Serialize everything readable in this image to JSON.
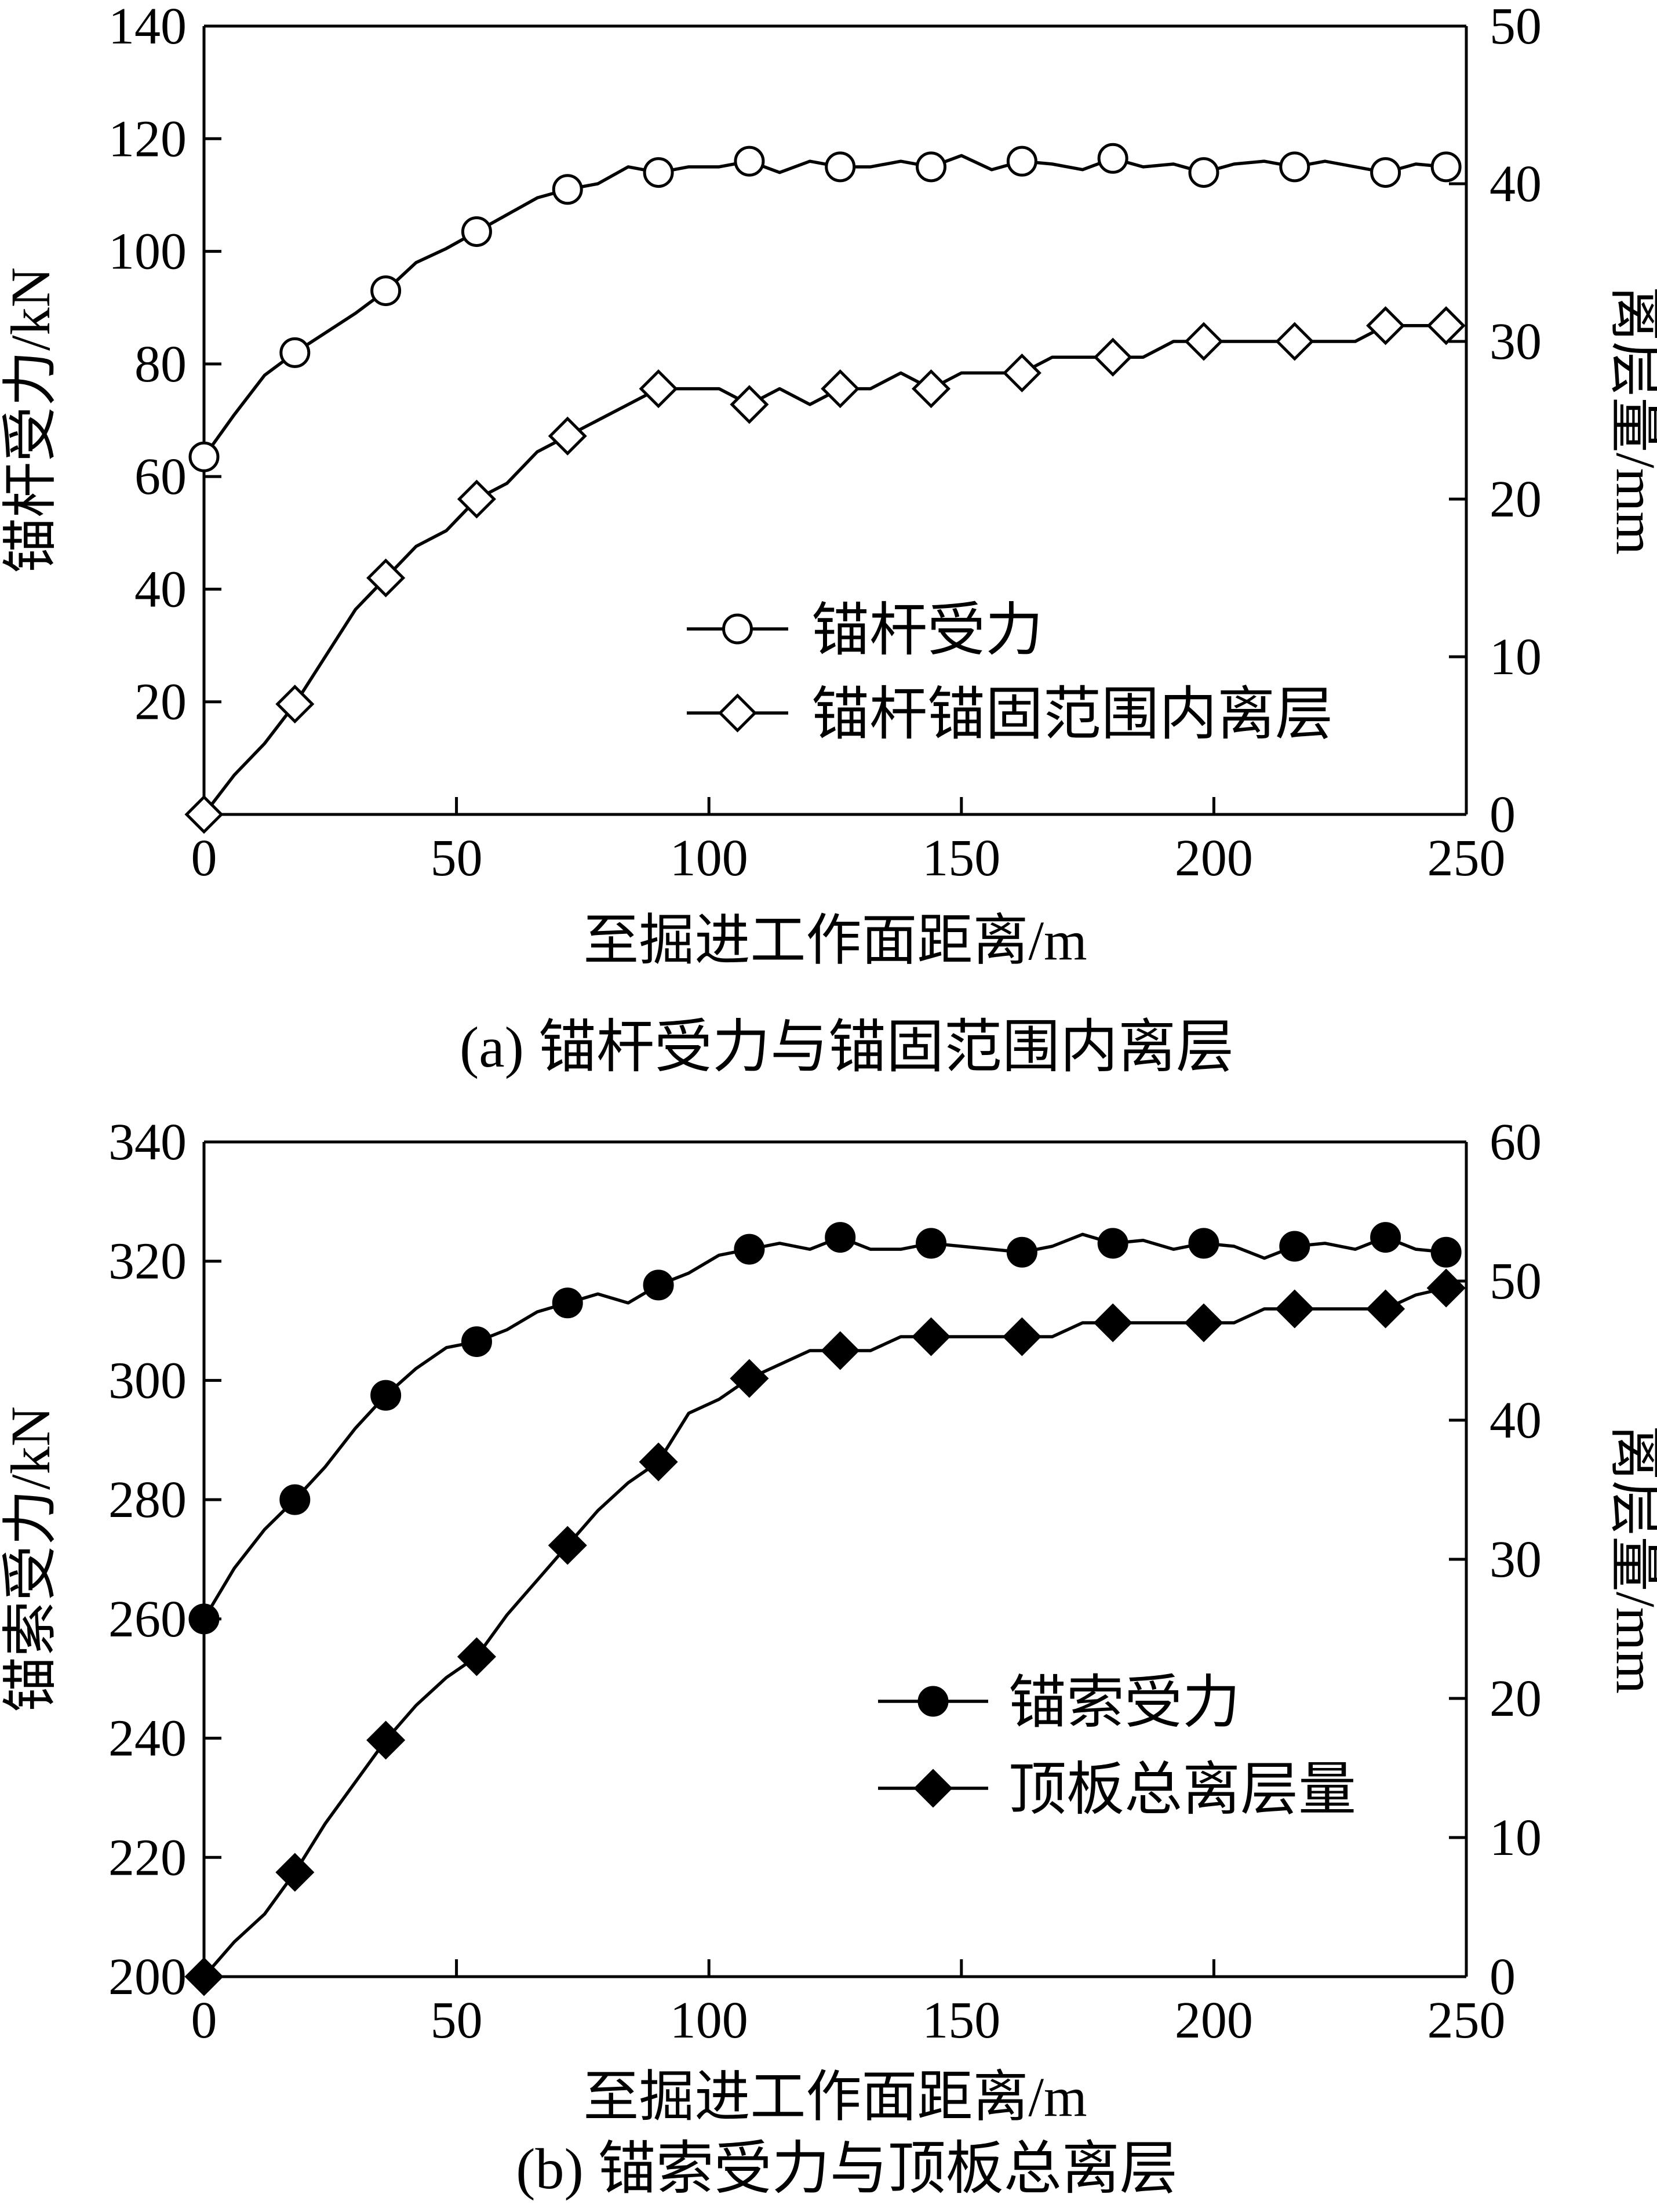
{
  "chart_data": [
    {
      "type": "line",
      "caption": "(a)  锚杆受力与锚固范围内离层",
      "xlabel": "至掘进工作面距离/m",
      "ylabel": "锚杆受力/kN",
      "y2label": "离层量/mm",
      "xlim": [
        0,
        250
      ],
      "ylim": [
        0,
        140
      ],
      "y2lim": [
        0,
        50
      ],
      "xticks": [
        0,
        50,
        100,
        150,
        200,
        250
      ],
      "yticks": [
        20,
        40,
        60,
        80,
        100,
        120,
        140
      ],
      "y2ticks": [
        0,
        10,
        20,
        30,
        40,
        50
      ],
      "legend_position": "center-right",
      "series": [
        {
          "name": "锚杆受力",
          "axis": "left",
          "marker": "circle-open",
          "x": [
            0,
            6,
            12,
            18,
            24,
            30,
            36,
            42,
            48,
            54,
            60,
            66,
            72,
            78,
            84,
            90,
            96,
            102,
            108,
            114,
            120,
            126,
            132,
            138,
            144,
            150,
            156,
            162,
            168,
            174,
            180,
            186,
            192,
            198,
            204,
            210,
            216,
            222,
            228,
            234,
            240,
            246
          ],
          "values": [
            63.5,
            71,
            78,
            82,
            85.5,
            89,
            93,
            98,
            100.5,
            103.5,
            106.5,
            109.5,
            111,
            112,
            115,
            114,
            115,
            115,
            116,
            114,
            116,
            115,
            115,
            116,
            115,
            117,
            114.5,
            116,
            115.5,
            114.5,
            116.5,
            115,
            115.5,
            114,
            115.5,
            116,
            115,
            116,
            115,
            114,
            115.5,
            115
          ]
        },
        {
          "name": "锚杆锚固范围内离层",
          "axis": "right",
          "marker": "diamond-open",
          "x": [
            0,
            6,
            12,
            18,
            24,
            30,
            36,
            42,
            48,
            54,
            60,
            66,
            72,
            78,
            84,
            90,
            96,
            102,
            108,
            114,
            120,
            126,
            132,
            138,
            144,
            150,
            156,
            162,
            168,
            174,
            180,
            186,
            192,
            198,
            204,
            210,
            216,
            222,
            228,
            234,
            240,
            246
          ],
          "values": [
            0,
            2.5,
            4.5,
            7,
            10,
            13,
            15,
            17,
            18,
            20,
            21,
            23,
            24,
            25,
            26,
            27,
            27,
            27,
            26,
            27,
            26,
            27,
            27,
            28,
            27,
            28,
            28,
            28,
            29,
            29,
            29,
            29,
            30,
            30,
            30,
            30,
            30,
            30,
            30,
            31,
            31,
            31
          ]
        }
      ]
    },
    {
      "type": "line",
      "caption": "(b)  锚索受力与顶板总离层",
      "xlabel": "至掘进工作面距离/m",
      "ylabel": "锚索受力/kN",
      "y2label": "离层量/mm",
      "xlim": [
        0,
        250
      ],
      "ylim": [
        200,
        340
      ],
      "y2lim": [
        0,
        60
      ],
      "xticks": [
        0,
        50,
        100,
        150,
        200,
        250
      ],
      "yticks": [
        200,
        220,
        240,
        260,
        280,
        300,
        320,
        340
      ],
      "y2ticks": [
        0,
        10,
        20,
        30,
        40,
        50,
        60
      ],
      "legend_position": "center-right",
      "series": [
        {
          "name": "锚索受力",
          "axis": "left",
          "marker": "circle-filled",
          "x": [
            0,
            6,
            12,
            18,
            24,
            30,
            36,
            42,
            48,
            54,
            60,
            66,
            72,
            78,
            84,
            90,
            96,
            102,
            108,
            114,
            120,
            126,
            132,
            138,
            144,
            150,
            156,
            162,
            168,
            174,
            180,
            186,
            192,
            198,
            204,
            210,
            216,
            222,
            228,
            234,
            240,
            246
          ],
          "values": [
            260,
            268.5,
            275,
            280,
            285.5,
            292,
            297.5,
            302,
            305.5,
            306.5,
            308.5,
            311.5,
            313,
            314.5,
            313,
            316,
            318,
            321,
            322,
            323,
            322,
            324,
            322,
            322,
            323,
            322.5,
            322,
            321.5,
            322.5,
            324.5,
            323,
            323.5,
            322,
            323,
            322.5,
            320.5,
            322.5,
            323,
            322,
            324,
            322,
            321.5
          ]
        },
        {
          "name": "顶板总离层量",
          "axis": "right",
          "marker": "diamond-filled",
          "x": [
            0,
            6,
            12,
            18,
            24,
            30,
            36,
            42,
            48,
            54,
            60,
            66,
            72,
            78,
            84,
            90,
            96,
            102,
            108,
            114,
            120,
            126,
            132,
            138,
            144,
            150,
            156,
            162,
            168,
            174,
            180,
            186,
            192,
            198,
            204,
            210,
            216,
            222,
            228,
            234,
            240,
            246
          ],
          "values": [
            0,
            2.5,
            4.5,
            7.5,
            11,
            14,
            17,
            19.5,
            21.5,
            23,
            26,
            28.5,
            31,
            33.5,
            35.5,
            37,
            40.5,
            41.5,
            43,
            44,
            45,
            45,
            45,
            46,
            46,
            46,
            46,
            46,
            46,
            47,
            47,
            47,
            47,
            47,
            47,
            48,
            48,
            48,
            48,
            48,
            49,
            49.5
          ]
        }
      ]
    }
  ]
}
